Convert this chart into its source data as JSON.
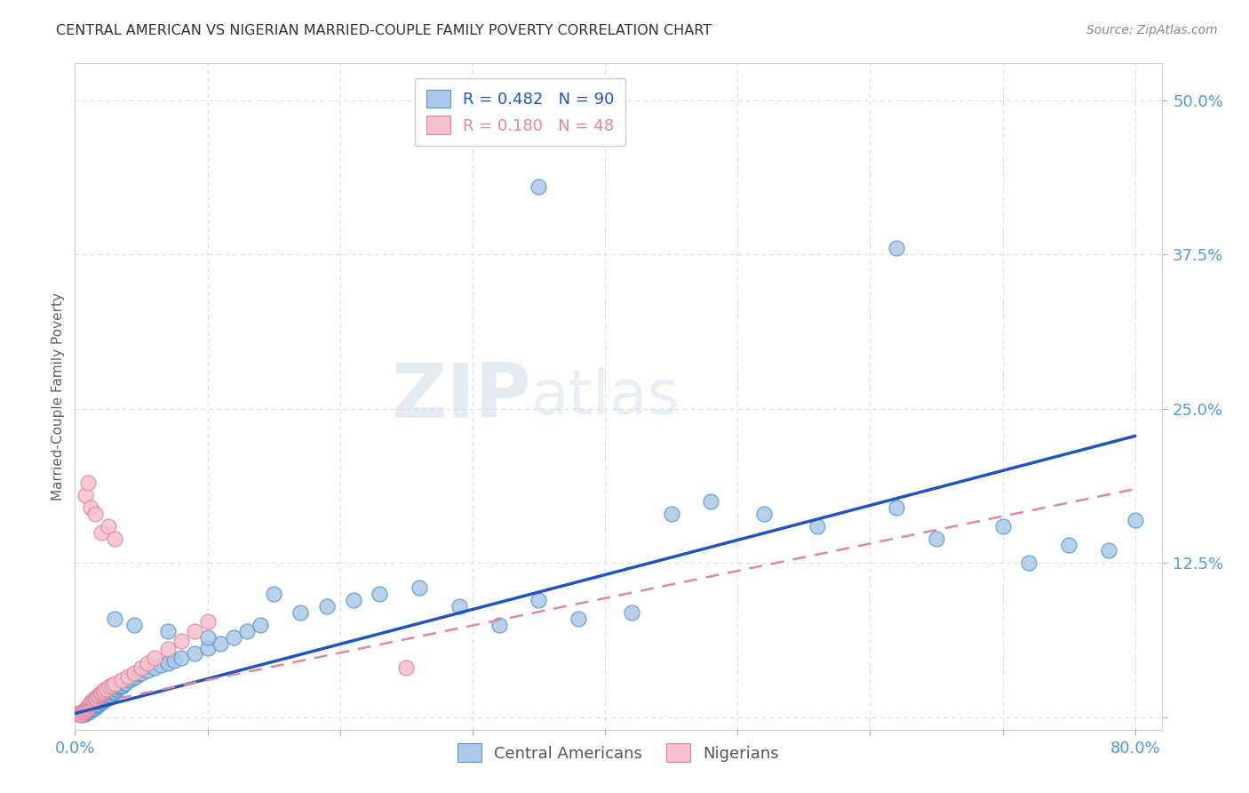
{
  "title": "CENTRAL AMERICAN VS NIGERIAN MARRIED-COUPLE FAMILY POVERTY CORRELATION CHART",
  "source": "Source: ZipAtlas.com",
  "ylabel": "Married-Couple Family Poverty",
  "xlim": [
    0.0,
    0.82
  ],
  "ylim": [
    -0.01,
    0.53
  ],
  "xticks": [
    0.0,
    0.1,
    0.2,
    0.3,
    0.4,
    0.5,
    0.6,
    0.7,
    0.8
  ],
  "xticklabels": [
    "0.0%",
    "",
    "",
    "",
    "",
    "",
    "",
    "",
    "80.0%"
  ],
  "yticks": [
    0.0,
    0.125,
    0.25,
    0.375,
    0.5
  ],
  "yticklabels": [
    "",
    "12.5%",
    "25.0%",
    "37.5%",
    "50.0%"
  ],
  "blue_color": "#adc8e8",
  "blue_edge_color": "#5599cc",
  "pink_color": "#f5c0cc",
  "pink_edge_color": "#dd88a0",
  "blue_line_color": "#2255bb",
  "pink_line_color": "#dd88a0",
  "watermark_zip": "ZIP",
  "watermark_atlas": "atlas",
  "background_color": "#ffffff",
  "grid_color": "#cccccc",
  "axis_label_color": "#5599cc",
  "title_color": "#333333",
  "blue_x": [
    0.005,
    0.007,
    0.008,
    0.009,
    0.01,
    0.01,
    0.011,
    0.012,
    0.013,
    0.013,
    0.014,
    0.015,
    0.015,
    0.016,
    0.016,
    0.017,
    0.017,
    0.018,
    0.018,
    0.019,
    0.02,
    0.02,
    0.021,
    0.021,
    0.022,
    0.022,
    0.023,
    0.024,
    0.025,
    0.025,
    0.026,
    0.027,
    0.028,
    0.029,
    0.03,
    0.03,
    0.031,
    0.032,
    0.033,
    0.034,
    0.035,
    0.036,
    0.037,
    0.038,
    0.04,
    0.042,
    0.044,
    0.046,
    0.048,
    0.05,
    0.055,
    0.06,
    0.065,
    0.07,
    0.075,
    0.08,
    0.09,
    0.1,
    0.11,
    0.12,
    0.13,
    0.14,
    0.15,
    0.17,
    0.19,
    0.21,
    0.23,
    0.26,
    0.29,
    0.32,
    0.35,
    0.38,
    0.42,
    0.45,
    0.48,
    0.52,
    0.56,
    0.62,
    0.65,
    0.7,
    0.72,
    0.75,
    0.78,
    0.8,
    0.35,
    0.62,
    0.03,
    0.045,
    0.07,
    0.1
  ],
  "blue_y": [
    0.002,
    0.003,
    0.003,
    0.004,
    0.004,
    0.005,
    0.005,
    0.006,
    0.006,
    0.007,
    0.007,
    0.008,
    0.008,
    0.009,
    0.009,
    0.01,
    0.01,
    0.011,
    0.011,
    0.012,
    0.012,
    0.013,
    0.013,
    0.014,
    0.014,
    0.015,
    0.015,
    0.016,
    0.016,
    0.017,
    0.018,
    0.018,
    0.019,
    0.02,
    0.02,
    0.021,
    0.022,
    0.023,
    0.024,
    0.025,
    0.025,
    0.026,
    0.027,
    0.028,
    0.03,
    0.031,
    0.032,
    0.033,
    0.035,
    0.036,
    0.038,
    0.04,
    0.042,
    0.044,
    0.046,
    0.048,
    0.052,
    0.056,
    0.06,
    0.065,
    0.07,
    0.075,
    0.1,
    0.085,
    0.09,
    0.095,
    0.1,
    0.105,
    0.09,
    0.075,
    0.095,
    0.08,
    0.085,
    0.165,
    0.175,
    0.165,
    0.155,
    0.17,
    0.145,
    0.155,
    0.125,
    0.14,
    0.135,
    0.16,
    0.43,
    0.38,
    0.08,
    0.075,
    0.07,
    0.065
  ],
  "pink_x": [
    0.003,
    0.004,
    0.005,
    0.006,
    0.006,
    0.007,
    0.007,
    0.008,
    0.008,
    0.009,
    0.009,
    0.01,
    0.01,
    0.011,
    0.011,
    0.012,
    0.013,
    0.014,
    0.015,
    0.016,
    0.017,
    0.018,
    0.019,
    0.02,
    0.021,
    0.022,
    0.024,
    0.026,
    0.028,
    0.03,
    0.035,
    0.04,
    0.045,
    0.05,
    0.055,
    0.06,
    0.07,
    0.08,
    0.09,
    0.1,
    0.008,
    0.01,
    0.012,
    0.015,
    0.02,
    0.025,
    0.03,
    0.25
  ],
  "pink_y": [
    0.002,
    0.003,
    0.003,
    0.004,
    0.004,
    0.005,
    0.005,
    0.006,
    0.006,
    0.007,
    0.007,
    0.008,
    0.009,
    0.01,
    0.011,
    0.012,
    0.013,
    0.014,
    0.015,
    0.016,
    0.017,
    0.018,
    0.019,
    0.02,
    0.021,
    0.022,
    0.023,
    0.025,
    0.026,
    0.027,
    0.03,
    0.033,
    0.036,
    0.04,
    0.044,
    0.048,
    0.055,
    0.062,
    0.07,
    0.078,
    0.18,
    0.19,
    0.17,
    0.165,
    0.15,
    0.155,
    0.145,
    0.04
  ],
  "blue_trend_x0": 0.0,
  "blue_trend_y0": 0.003,
  "blue_trend_x1": 0.8,
  "blue_trend_y1": 0.228,
  "pink_trend_x0": 0.0,
  "pink_trend_y0": 0.008,
  "pink_trend_x1": 0.8,
  "pink_trend_y1": 0.185
}
